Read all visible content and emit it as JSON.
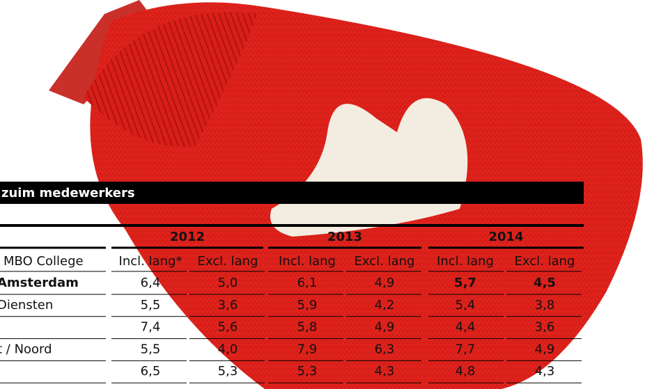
{
  "header": {
    "title": "zuim medewerkers"
  },
  "table": {
    "years": [
      "2012",
      "2013",
      "2014"
    ],
    "columns": [
      "MBO College",
      "Incl. lang*",
      "Excl. lang",
      "Incl. lang",
      "Excl. lang",
      "Incl. lang",
      "Excl. lang"
    ],
    "rows": [
      [
        "Amsterdam",
        "6,4",
        "5,0",
        "6,1",
        "4,9",
        "5,7",
        "4,5"
      ],
      [
        "Diensten",
        "5,5",
        "3,6",
        "5,9",
        "4,2",
        "5,4",
        "3,8"
      ],
      [
        null,
        "7,4",
        "5,6",
        "5,8",
        "4,9",
        "4,4",
        "3,6"
      ],
      [
        "t / Noord",
        "5,5",
        "4,0",
        "7,9",
        "6,3",
        "7,7",
        "4,9"
      ],
      [
        null,
        "6,5",
        "5,3",
        "5,3",
        "4,3",
        "4,8",
        "4,3"
      ]
    ]
  }
}
